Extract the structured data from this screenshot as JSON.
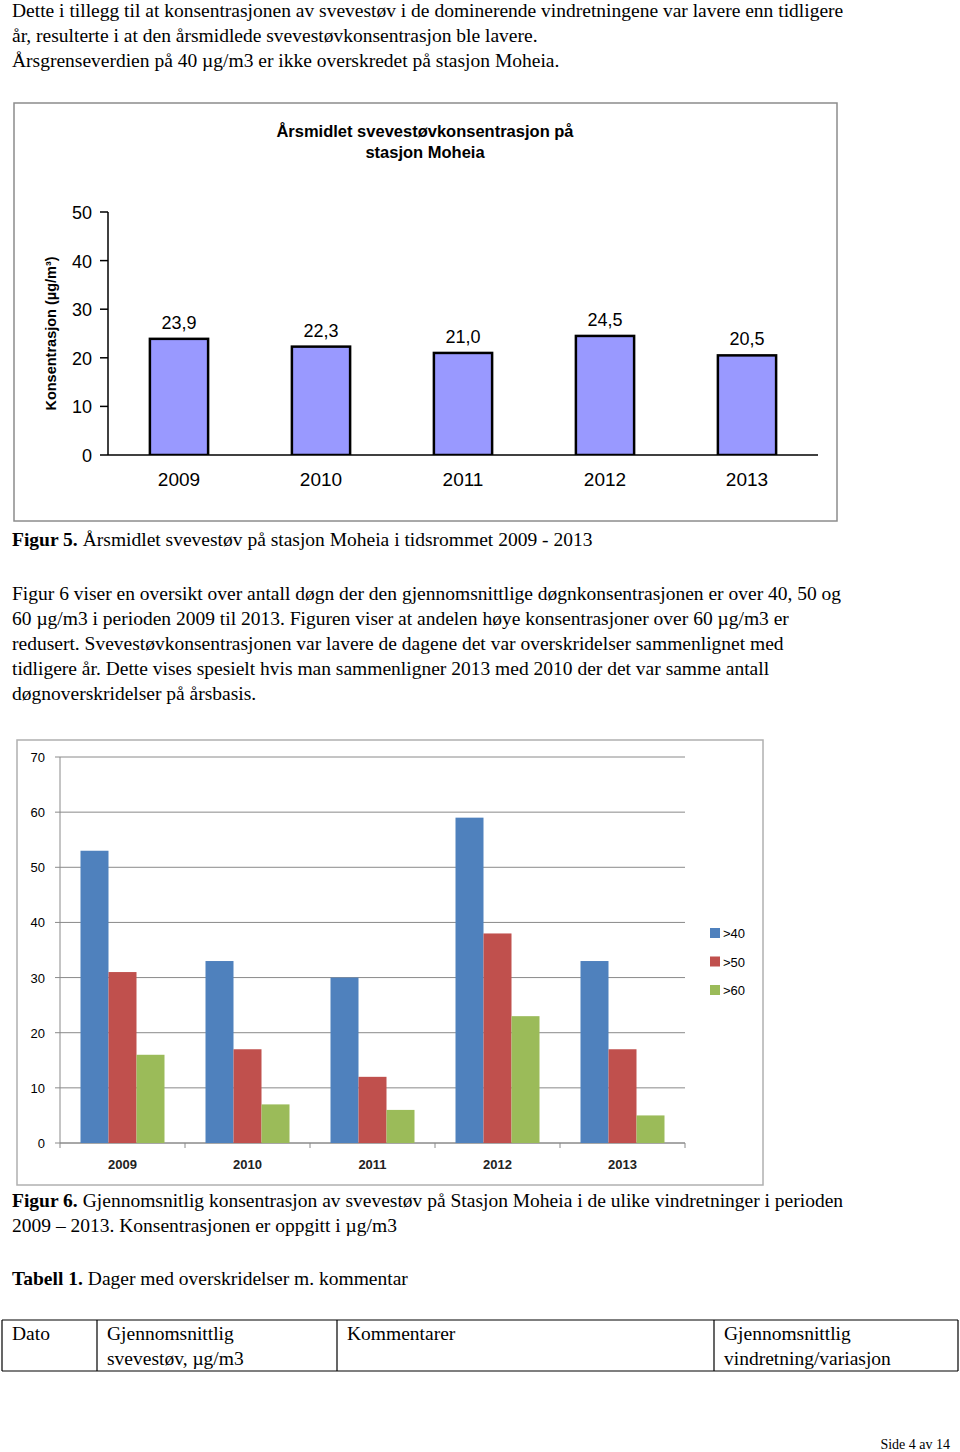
{
  "intro_lines": [
    "Dette i tillegg til at konsentrasjonen av svevestøv i de dominerende vindretningene var lavere enn tidligere",
    "år, resulterte i at den årsmidlede svevestøvkonsentrasjon ble lavere.",
    "Årsgrenseverdien på 40 µg/m3 er ikke overskredet på stasjon Moheia."
  ],
  "chart_data": [
    {
      "type": "bar",
      "title": [
        "Årsmidlet svevestøvkonsentrasjon på",
        "stasjon Moheia"
      ],
      "ylabel": "Konsentrasjon (µg/m³)",
      "categories": [
        "2009",
        "2010",
        "2011",
        "2012",
        "2013"
      ],
      "values": [
        23.9,
        22.3,
        21.0,
        24.5,
        20.5
      ],
      "value_labels": [
        "23,9",
        "22,3",
        "21,0",
        "24,5",
        "20,5"
      ],
      "data_labels": true,
      "color": "#9999ff",
      "ylim": [
        0,
        50
      ],
      "yticks": [
        0,
        10,
        20,
        30,
        40,
        50
      ],
      "grid": false
    },
    {
      "type": "bar",
      "categories": [
        "2009",
        "2010",
        "2011",
        "2012",
        "2013"
      ],
      "series": [
        {
          "name": ">40",
          "color": "#4f81bd",
          "values": [
            53,
            33,
            30,
            59,
            33
          ]
        },
        {
          "name": ">50",
          "color": "#c0504d",
          "values": [
            31,
            17,
            12,
            38,
            17
          ]
        },
        {
          "name": ">60",
          "color": "#9bbb59",
          "values": [
            16,
            7,
            6,
            23,
            5
          ]
        }
      ],
      "ylim": [
        0,
        70
      ],
      "yticks": [
        0,
        10,
        20,
        30,
        40,
        50,
        60,
        70
      ],
      "grid": true,
      "legend": "right"
    }
  ],
  "captions": [
    {
      "label": "Figur 5.",
      "lines": [
        "Årsmidlet svevestøv på stasjon Moheia i tidsrommet 2009 - 2013"
      ]
    },
    {
      "label": "Figur 6.",
      "lines": [
        "Gjennomsnitlig konsentrasjon av svevestøv på Stasjon Moheia i de ulike vindretninger i perioden",
        "2009 – 2013. Konsentrasjonen er oppgitt i µg/m3"
      ]
    }
  ],
  "paragraph_lines": [
    "Figur 6 viser en oversikt over antall døgn der den gjennomsnittlige døgnkonsentrasjonen er over 40, 50 og",
    "60 µg/m3 i perioden 2009 til 2013. Figuren viser at andelen høye konsentrasjoner over 60 µg/m3 er",
    "redusert. Svevestøvkonsentrasjonen var lavere de dagene det var overskridelser sammenlignet med",
    "tidligere år. Dette vises spesielt hvis man sammenligner 2013 med 2010 der det var samme antall",
    "døgnoverskridelser på årsbasis."
  ],
  "table": {
    "label": "Tabell 1.",
    "title": "Dager med overskridelser m. kommentar",
    "header": [
      [
        "Dato"
      ],
      [
        "Gjennomsnittlig",
        "svevestøv, µg/m3"
      ],
      [
        "Kommentarer"
      ],
      [
        "Gjennomsnittlig",
        "vindretning/variasjon"
      ]
    ]
  },
  "footer": "Side 4 av 14"
}
